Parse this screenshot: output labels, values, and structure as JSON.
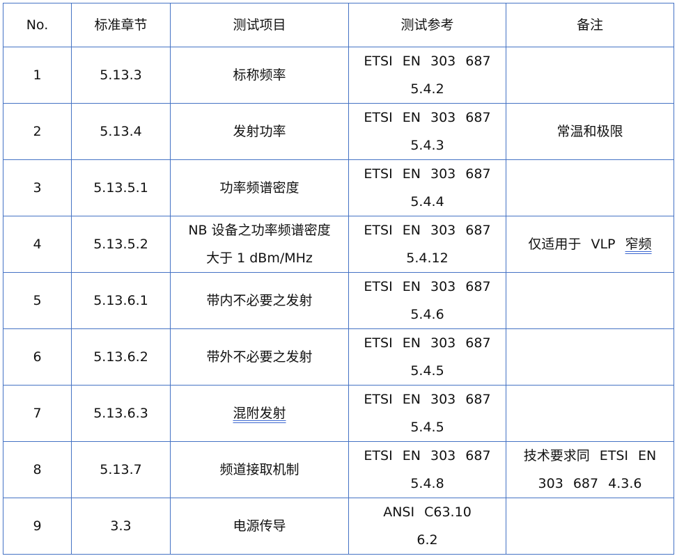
{
  "headers": [
    "No.",
    "标准章节",
    "测试项目",
    "测试参考",
    "备注"
  ],
  "rows": [
    {
      "no": "1",
      "clause": "5.13.3",
      "item": "标称频率",
      "ref1": "ETSI EN 303 687",
      "ref2": "5.4.2",
      "note": ""
    },
    {
      "no": "2",
      "clause": "5.13.4",
      "item": "发射功率",
      "ref1": "ETSI EN 303 687",
      "ref2": "5.4.3",
      "note": "常温和极限"
    },
    {
      "no": "3",
      "clause": "5.13.5.1",
      "item": "功率频谱密度",
      "ref1": "ETSI EN 303 687",
      "ref2": "5.4.4",
      "note": ""
    },
    {
      "no": "4",
      "clause": "5.13.5.2",
      "item": "NB 设备之功率频谱密度",
      "item2": "大于 1 dBm/MHz",
      "ref1": "ETSI EN 303 687",
      "ref2": "5.4.12",
      "note": "仅适用于 VLP ",
      "note_ul": "窄频"
    },
    {
      "no": "5",
      "clause": "5.13.6.1",
      "item": "带内不必要之发射",
      "ref1": "ETSI EN 303 687",
      "ref2": "5.4.6",
      "note": ""
    },
    {
      "no": "6",
      "clause": "5.13.6.2",
      "item": "带外不必要之发射",
      "ref1": "ETSI EN 303 687",
      "ref2": "5.4.5",
      "note": ""
    },
    {
      "no": "7",
      "clause": "5.13.6.3",
      "item": "混附发射",
      "ref1": "ETSI EN 303 687",
      "ref2": "5.4.5",
      "note": ""
    },
    {
      "no": "8",
      "clause": "5.13.7",
      "item": "频道接取机制",
      "ref1": "ETSI EN 303 687",
      "ref2": "5.4.8",
      "note": "技术要求同 ETSI EN",
      "note2": "303 687 4.3.6"
    },
    {
      "no": "9",
      "clause": "3.3",
      "item": "电源传导",
      "ref1": "ANSI C63.10",
      "ref2": "6.2",
      "note": ""
    }
  ],
  "colors": {
    "border": "#4472c4",
    "spellcheck_underline": "#3a66d0"
  }
}
